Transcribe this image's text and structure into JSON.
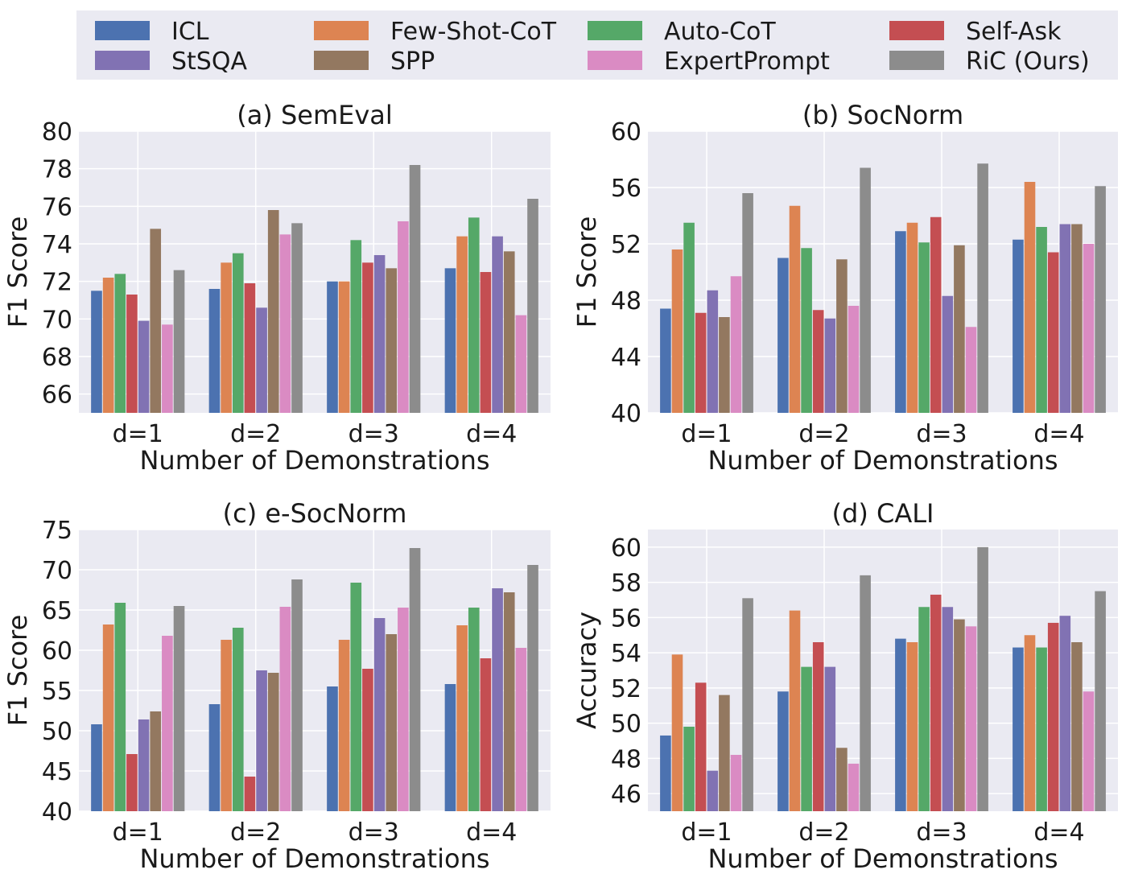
{
  "legend": {
    "items": [
      {
        "label": "ICL",
        "color": "#4c72b0"
      },
      {
        "label": "StSQA",
        "color": "#8172b3"
      },
      {
        "label": "Few-Shot-CoT",
        "color": "#dd8452"
      },
      {
        "label": "SPP",
        "color": "#937860"
      },
      {
        "label": "Auto-CoT",
        "color": "#55a868"
      },
      {
        "label": "ExpertPrompt",
        "color": "#da8bc3"
      },
      {
        "label": "Self-Ask",
        "color": "#c44e52"
      },
      {
        "label": "RiC (Ours)",
        "color": "#8c8c8c"
      }
    ]
  },
  "series_order": [
    "ICL",
    "Few-Shot-CoT",
    "Auto-CoT",
    "Self-Ask",
    "StSQA",
    "SPP",
    "ExpertPrompt",
    "RiC (Ours)"
  ],
  "colors": {
    "ICL": "#4c72b0",
    "Few-Shot-CoT": "#dd8452",
    "Auto-CoT": "#55a868",
    "Self-Ask": "#c44e52",
    "StSQA": "#8172b3",
    "SPP": "#937860",
    "ExpertPrompt": "#da8bc3",
    "RiC (Ours)": "#8c8c8c",
    "panel_bg": "#eaeaf2",
    "grid": "#ffffff"
  },
  "chart_data": [
    {
      "type": "bar",
      "title": "(a) SemEval",
      "xlabel": "Number of Demonstrations",
      "ylabel": "F1 Score",
      "ylim": [
        65,
        80
      ],
      "yticks": [
        66,
        68,
        70,
        72,
        74,
        76,
        78,
        80
      ],
      "categories": [
        "d=1",
        "d=2",
        "d=3",
        "d=4"
      ],
      "series": [
        {
          "name": "ICL",
          "values": [
            71.5,
            71.6,
            72.0,
            72.7
          ]
        },
        {
          "name": "Few-Shot-CoT",
          "values": [
            72.2,
            73.0,
            72.0,
            74.4
          ]
        },
        {
          "name": "Auto-CoT",
          "values": [
            72.4,
            73.5,
            74.2,
            75.4
          ]
        },
        {
          "name": "Self-Ask",
          "values": [
            71.3,
            71.9,
            73.0,
            72.5
          ]
        },
        {
          "name": "StSQA",
          "values": [
            69.9,
            70.6,
            73.4,
            74.4
          ]
        },
        {
          "name": "SPP",
          "values": [
            74.8,
            75.8,
            72.7,
            73.6
          ]
        },
        {
          "name": "ExpertPrompt",
          "values": [
            69.7,
            74.5,
            75.2,
            70.2
          ]
        },
        {
          "name": "RiC (Ours)",
          "values": [
            72.6,
            75.1,
            78.2,
            76.4
          ]
        }
      ]
    },
    {
      "type": "bar",
      "title": "(b) SocNorm",
      "xlabel": "Number of Demonstrations",
      "ylabel": "F1 Score",
      "ylim": [
        40,
        60
      ],
      "yticks": [
        40,
        44,
        48,
        52,
        56,
        60
      ],
      "categories": [
        "d=1",
        "d=2",
        "d=3",
        "d=4"
      ],
      "series": [
        {
          "name": "ICL",
          "values": [
            47.4,
            51.0,
            52.9,
            52.3
          ]
        },
        {
          "name": "Few-Shot-CoT",
          "values": [
            51.6,
            54.7,
            53.5,
            56.4
          ]
        },
        {
          "name": "Auto-CoT",
          "values": [
            53.5,
            51.7,
            52.1,
            53.2
          ]
        },
        {
          "name": "Self-Ask",
          "values": [
            47.1,
            47.3,
            53.9,
            51.4
          ]
        },
        {
          "name": "StSQA",
          "values": [
            48.7,
            46.7,
            48.3,
            53.4
          ]
        },
        {
          "name": "SPP",
          "values": [
            46.8,
            50.9,
            51.9,
            53.4
          ]
        },
        {
          "name": "ExpertPrompt",
          "values": [
            49.7,
            47.6,
            46.1,
            52.0
          ]
        },
        {
          "name": "RiC (Ours)",
          "values": [
            55.6,
            57.4,
            57.7,
            56.1
          ]
        }
      ]
    },
    {
      "type": "bar",
      "title": "(c) e-SocNorm",
      "xlabel": "Number of Demonstrations",
      "ylabel": "F1 Score",
      "ylim": [
        40,
        75
      ],
      "yticks": [
        40,
        45,
        50,
        55,
        60,
        65,
        70,
        75
      ],
      "categories": [
        "d=1",
        "d=2",
        "d=3",
        "d=4"
      ],
      "series": [
        {
          "name": "ICL",
          "values": [
            50.8,
            53.3,
            55.5,
            55.8
          ]
        },
        {
          "name": "Few-Shot-CoT",
          "values": [
            63.2,
            61.3,
            61.3,
            63.1
          ]
        },
        {
          "name": "Auto-CoT",
          "values": [
            65.9,
            62.8,
            68.4,
            65.3
          ]
        },
        {
          "name": "Self-Ask",
          "values": [
            47.1,
            44.3,
            57.7,
            59.0
          ]
        },
        {
          "name": "StSQA",
          "values": [
            51.4,
            57.5,
            64.0,
            67.7
          ]
        },
        {
          "name": "SPP",
          "values": [
            52.4,
            57.2,
            62.0,
            67.2
          ]
        },
        {
          "name": "ExpertPrompt",
          "values": [
            61.8,
            65.4,
            65.3,
            60.3
          ]
        },
        {
          "name": "RiC (Ours)",
          "values": [
            65.5,
            68.8,
            72.7,
            70.6
          ]
        }
      ]
    },
    {
      "type": "bar",
      "title": "(d) CALI",
      "xlabel": "Number of Demonstrations",
      "ylabel": "Accuracy",
      "ylim": [
        45,
        61
      ],
      "yticks": [
        46,
        48,
        50,
        52,
        54,
        56,
        58,
        60
      ],
      "categories": [
        "d=1",
        "d=2",
        "d=3",
        "d=4"
      ],
      "series": [
        {
          "name": "ICL",
          "values": [
            49.3,
            51.8,
            54.8,
            54.3
          ]
        },
        {
          "name": "Few-Shot-CoT",
          "values": [
            53.9,
            56.4,
            54.6,
            55.0
          ]
        },
        {
          "name": "Auto-CoT",
          "values": [
            49.8,
            53.2,
            56.6,
            54.3
          ]
        },
        {
          "name": "Self-Ask",
          "values": [
            52.3,
            54.6,
            57.3,
            55.7
          ]
        },
        {
          "name": "StSQA",
          "values": [
            47.3,
            53.2,
            56.6,
            56.1
          ]
        },
        {
          "name": "SPP",
          "values": [
            51.6,
            48.6,
            55.9,
            54.6
          ]
        },
        {
          "name": "ExpertPrompt",
          "values": [
            48.2,
            47.7,
            55.5,
            51.8
          ]
        },
        {
          "name": "RiC (Ours)",
          "values": [
            57.1,
            58.4,
            60.0,
            57.5
          ]
        }
      ]
    }
  ]
}
